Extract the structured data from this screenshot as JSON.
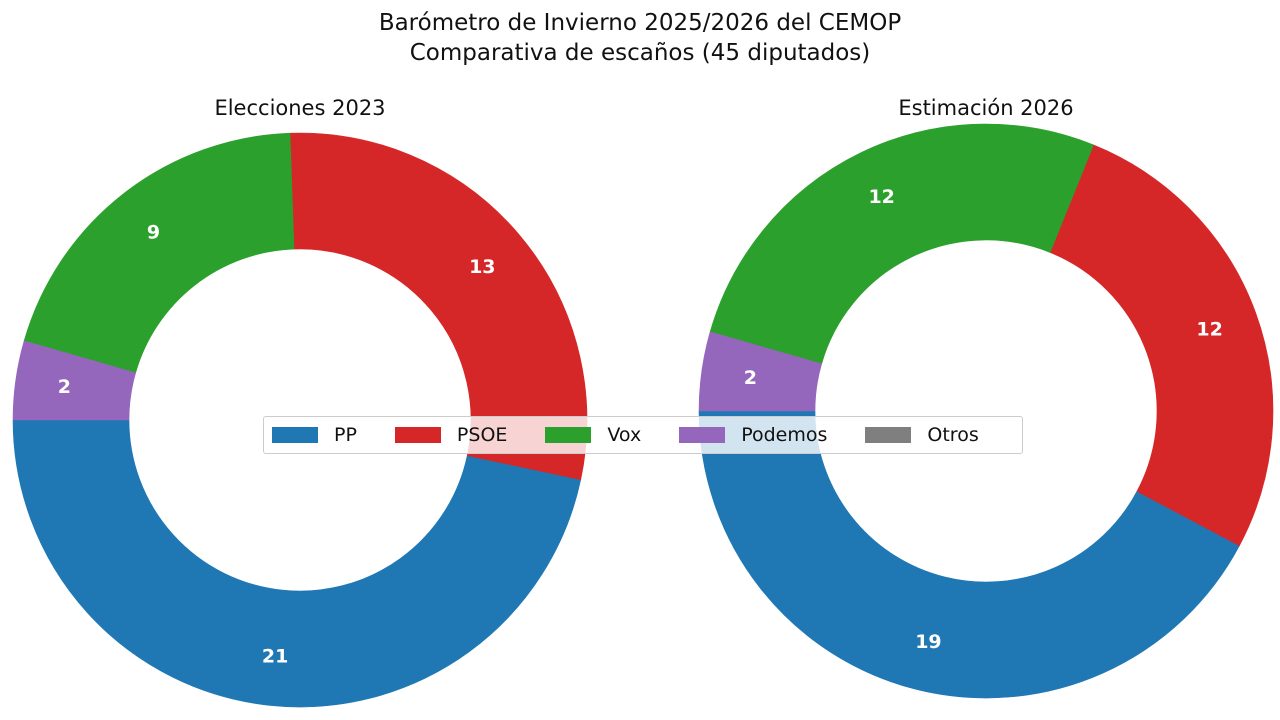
{
  "title": {
    "line1": "Barómetro de Invierno 2025/2026 del CEMOP",
    "line2": "Comparativa de escaños (45 diputados)"
  },
  "colors": {
    "PP": "#1f77b4",
    "PSOE": "#d62728",
    "Vox": "#2ca02c",
    "Podemos": "#9467bd",
    "Otros": "#7f7f7f"
  },
  "legend": [
    "PP",
    "PSOE",
    "Vox",
    "Podemos",
    "Otros"
  ],
  "chart_data": [
    {
      "type": "pie",
      "style": "donut",
      "title": "Elecciones 2023",
      "categories": [
        "PP",
        "PSOE",
        "Vox",
        "Podemos",
        "Otros"
      ],
      "values": [
        21,
        13,
        9,
        2,
        0
      ],
      "data_labels": [
        "21",
        "13",
        "9",
        "2",
        ""
      ]
    },
    {
      "type": "pie",
      "style": "donut",
      "title": "Estimación 2026",
      "categories": [
        "PP",
        "PSOE",
        "Vox",
        "Podemos",
        "Otros"
      ],
      "values": [
        19,
        12,
        12,
        2,
        0
      ],
      "data_labels": [
        "19",
        "12",
        "12",
        "2",
        ""
      ]
    }
  ]
}
